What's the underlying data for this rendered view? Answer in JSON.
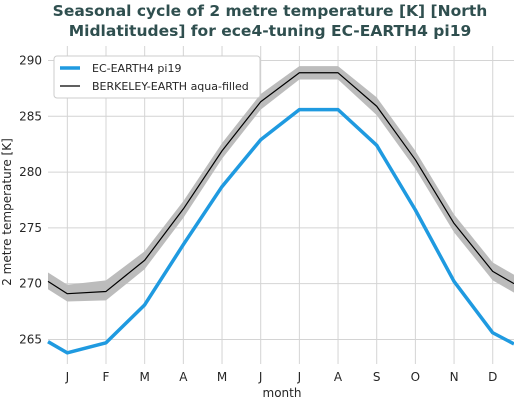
{
  "chart_data": {
    "type": "line",
    "title_lines": [
      "Seasonal cycle of 2 metre temperature [K] [North",
      "Midlatitudes] for ece4-tuning EC-EARTH4 pi19"
    ],
    "xlabel": "month",
    "ylabel": "2 metre temperature [K]",
    "categories": [
      "J",
      "F",
      "M",
      "A",
      "M",
      "J",
      "J",
      "A",
      "S",
      "O",
      "N",
      "D"
    ],
    "xlim": [
      0.0,
      12.05
    ],
    "ylim": [
      262.8,
      291.3
    ],
    "yticks": [
      265,
      270,
      275,
      280,
      285,
      290
    ],
    "grid": true,
    "legend_position": "top-left",
    "series": [
      {
        "name": "EC-EARTH4 pi19",
        "color": "#1f9ae0",
        "x": [
          0.0,
          0.5,
          1.5,
          2.5,
          3.5,
          4.5,
          5.5,
          6.5,
          7.5,
          8.5,
          9.5,
          10.5,
          11.5,
          12.05
        ],
        "values": [
          264.8,
          263.8,
          264.7,
          268.1,
          273.5,
          278.7,
          282.9,
          285.6,
          285.6,
          282.4,
          276.6,
          270.2,
          265.6,
          264.6
        ]
      },
      {
        "name": "BERKELEY-EARTH aqua-filled",
        "color": "#000000",
        "band_color": "#bcbcbc",
        "x": [
          0.0,
          0.5,
          1.5,
          2.5,
          3.5,
          4.5,
          5.5,
          6.5,
          7.5,
          8.5,
          9.5,
          10.5,
          11.5,
          12.05
        ],
        "values": [
          270.2,
          269.1,
          269.3,
          272.1,
          276.7,
          281.9,
          286.3,
          288.9,
          288.9,
          285.9,
          281.1,
          275.4,
          271.1,
          270.0
        ],
        "band_lower": [
          269.5,
          268.4,
          268.5,
          271.3,
          275.9,
          281.2,
          285.6,
          288.3,
          288.3,
          285.1,
          280.3,
          274.6,
          270.3,
          269.2
        ],
        "band_upper": [
          271.0,
          269.9,
          270.3,
          272.9,
          277.4,
          282.6,
          287.0,
          289.5,
          289.5,
          286.7,
          281.9,
          276.2,
          271.9,
          270.8
        ]
      }
    ]
  }
}
